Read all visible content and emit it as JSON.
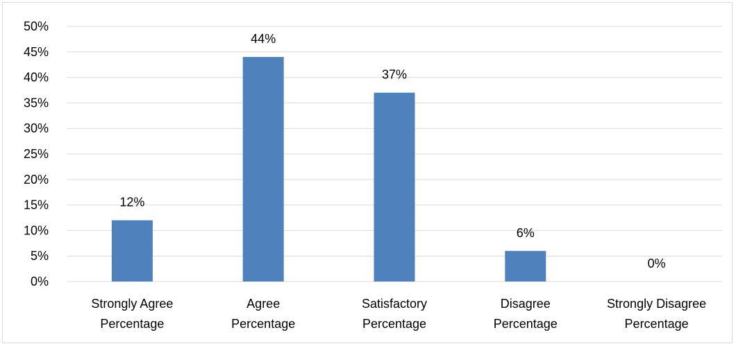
{
  "chart_data": {
    "type": "bar",
    "categories": [
      [
        "Strongly Agree",
        "Percentage"
      ],
      [
        "Agree",
        "Percentage"
      ],
      [
        "Satisfactory",
        "Percentage"
      ],
      [
        "Disagree",
        "Percentage"
      ],
      [
        "Strongly Disagree",
        "Percentage"
      ]
    ],
    "values": [
      12,
      44,
      37,
      6,
      0
    ],
    "data_labels": [
      "12%",
      "44%",
      "37%",
      "6%",
      "0%"
    ],
    "ylim": [
      0,
      50
    ],
    "y_ticks": [
      "0%",
      "5%",
      "10%",
      "15%",
      "20%",
      "25%",
      "30%",
      "35%",
      "40%",
      "45%",
      "50%"
    ],
    "title": "",
    "xlabel": "",
    "ylabel": "",
    "grid": true,
    "legend": "none",
    "colors": {
      "bar": "#4f81bd",
      "grid": "#d9d9d9"
    }
  }
}
